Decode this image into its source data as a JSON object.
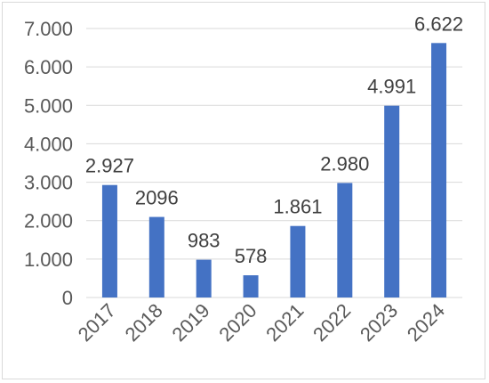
{
  "chart_data": {
    "type": "bar",
    "title": "",
    "xlabel": "",
    "ylabel": "",
    "categories": [
      "2017",
      "2018",
      "2019",
      "2020",
      "2021",
      "2022",
      "2023",
      "2024"
    ],
    "values": [
      2927,
      2096,
      983,
      578,
      1861,
      2980,
      4991,
      6622
    ],
    "data_labels": [
      "2.927",
      "2096",
      "983",
      "578",
      "1.861",
      "2.980",
      "4.991",
      "6.622"
    ],
    "ylim": [
      0,
      7000
    ],
    "yticks": [
      0,
      1000,
      2000,
      3000,
      4000,
      5000,
      6000,
      7000
    ],
    "ytick_labels": [
      "0",
      "1.000",
      "2.000",
      "3.000",
      "4.000",
      "5.000",
      "6.000",
      "7.000"
    ],
    "grid": true,
    "bar_color": "#4472c4",
    "grid_color": "#d9d9d9"
  }
}
